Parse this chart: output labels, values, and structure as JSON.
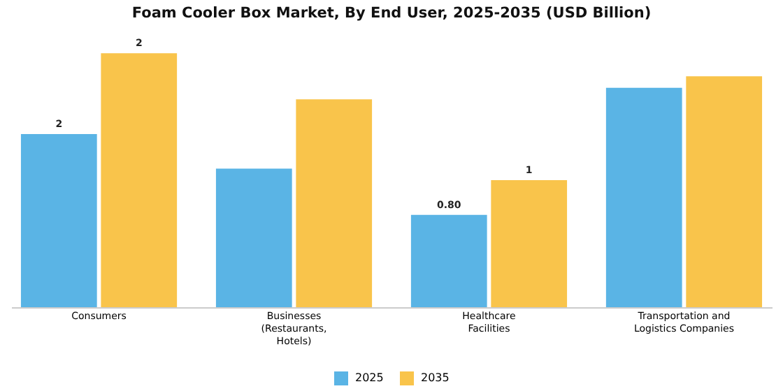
{
  "chart_data": {
    "type": "bar",
    "title": "Foam Cooler Box Market, By End User, 2025-2035 (USD Billion)",
    "categories": [
      "Consumers",
      "Businesses (Restaurants, Hotels)",
      "Healthcare Facilities",
      "Transportation and Logistics Companies"
    ],
    "series": [
      {
        "name": "2025",
        "color": "#5ab4e5",
        "values": [
          1.5,
          1.2,
          0.8,
          1.9
        ],
        "value_labels": [
          "2",
          null,
          "0.80",
          null
        ]
      },
      {
        "name": "2035",
        "color": "#f9c44b",
        "values": [
          2.2,
          1.8,
          1.1,
          2.0
        ],
        "value_labels": [
          "2",
          null,
          "1",
          null
        ]
      }
    ],
    "legend": "bottom"
  }
}
